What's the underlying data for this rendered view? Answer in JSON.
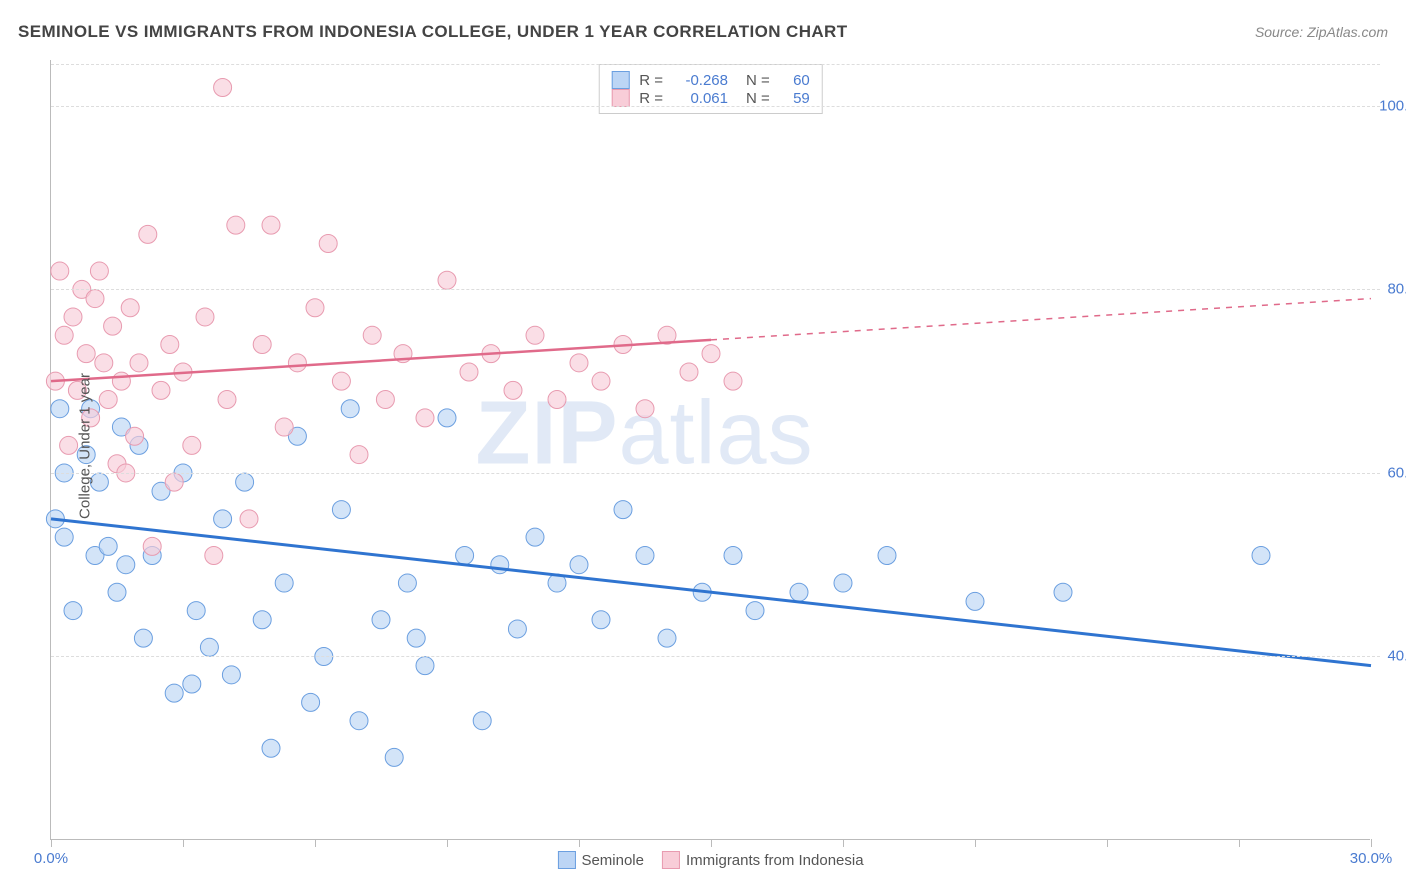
{
  "title": "SEMINOLE VS IMMIGRANTS FROM INDONESIA COLLEGE, UNDER 1 YEAR CORRELATION CHART",
  "source": "Source: ZipAtlas.com",
  "watermark1": "ZIP",
  "watermark2": "atlas",
  "ylabel": "College, Under 1 year",
  "chart": {
    "type": "scatter-correlation",
    "xlim": [
      0,
      30
    ],
    "ylim": [
      20,
      105
    ],
    "y_ticks": [
      40,
      60,
      80,
      100
    ],
    "y_tick_labels": [
      "40.0%",
      "60.0%",
      "80.0%",
      "100.0%"
    ],
    "x_tick_positions": [
      0,
      3,
      6,
      9,
      12,
      15,
      18,
      21,
      24,
      27,
      30
    ],
    "x_tick_labels_visible": {
      "0": "0.0%",
      "30": "30.0%"
    },
    "grid_color": "#dddddd",
    "axis_color": "#bbbbbb",
    "background": "#ffffff",
    "tick_label_color": "#4a7bd0",
    "series": [
      {
        "name": "Seminole",
        "fill": "#bcd5f5",
        "stroke": "#6b9fe0",
        "trend_color": "#2f74d0",
        "trend_width": 3,
        "R": "-0.268",
        "N": "60",
        "trend": {
          "x1": 0,
          "y1": 55,
          "x2": 30,
          "y2": 39
        },
        "points": [
          [
            0.1,
            55
          ],
          [
            0.2,
            67
          ],
          [
            0.3,
            53
          ],
          [
            0.3,
            60
          ],
          [
            0.5,
            45
          ],
          [
            0.8,
            62
          ],
          [
            0.9,
            67
          ],
          [
            1.0,
            51
          ],
          [
            1.1,
            59
          ],
          [
            1.3,
            52
          ],
          [
            1.5,
            47
          ],
          [
            1.6,
            65
          ],
          [
            1.7,
            50
          ],
          [
            2.0,
            63
          ],
          [
            2.1,
            42
          ],
          [
            2.3,
            51
          ],
          [
            2.5,
            58
          ],
          [
            2.8,
            36
          ],
          [
            3.0,
            60
          ],
          [
            3.2,
            37
          ],
          [
            3.3,
            45
          ],
          [
            3.6,
            41
          ],
          [
            3.9,
            55
          ],
          [
            4.1,
            38
          ],
          [
            4.4,
            59
          ],
          [
            4.8,
            44
          ],
          [
            5.0,
            30
          ],
          [
            5.3,
            48
          ],
          [
            5.6,
            64
          ],
          [
            5.9,
            35
          ],
          [
            6.2,
            40
          ],
          [
            6.6,
            56
          ],
          [
            6.8,
            67
          ],
          [
            7.0,
            33
          ],
          [
            7.5,
            44
          ],
          [
            7.8,
            29
          ],
          [
            8.1,
            48
          ],
          [
            8.3,
            42
          ],
          [
            8.5,
            39
          ],
          [
            9.0,
            66
          ],
          [
            9.4,
            51
          ],
          [
            9.8,
            33
          ],
          [
            10.2,
            50
          ],
          [
            10.6,
            43
          ],
          [
            11.0,
            53
          ],
          [
            11.5,
            48
          ],
          [
            12.0,
            50
          ],
          [
            12.5,
            44
          ],
          [
            13.0,
            56
          ],
          [
            13.5,
            51
          ],
          [
            14.0,
            42
          ],
          [
            14.8,
            47
          ],
          [
            15.5,
            51
          ],
          [
            16.0,
            45
          ],
          [
            17.0,
            47
          ],
          [
            18.0,
            48
          ],
          [
            19.0,
            51
          ],
          [
            21.0,
            46
          ],
          [
            23.0,
            47
          ],
          [
            27.5,
            51
          ]
        ]
      },
      {
        "name": "Immigrants from Indonesia",
        "fill": "#f8cdd8",
        "stroke": "#e89bb0",
        "trend_color": "#e06a8a",
        "trend_width": 2.5,
        "R": "0.061",
        "N": "59",
        "trend": {
          "x1": 0,
          "y1": 70,
          "x2": 30,
          "y2": 79
        },
        "trend_dash_after_x": 15,
        "points": [
          [
            0.1,
            70
          ],
          [
            0.2,
            82
          ],
          [
            0.3,
            75
          ],
          [
            0.4,
            63
          ],
          [
            0.5,
            77
          ],
          [
            0.6,
            69
          ],
          [
            0.7,
            80
          ],
          [
            0.8,
            73
          ],
          [
            0.9,
            66
          ],
          [
            1.0,
            79
          ],
          [
            1.1,
            82
          ],
          [
            1.2,
            72
          ],
          [
            1.3,
            68
          ],
          [
            1.4,
            76
          ],
          [
            1.5,
            61
          ],
          [
            1.6,
            70
          ],
          [
            1.7,
            60
          ],
          [
            1.8,
            78
          ],
          [
            1.9,
            64
          ],
          [
            2.0,
            72
          ],
          [
            2.2,
            86
          ],
          [
            2.3,
            52
          ],
          [
            2.5,
            69
          ],
          [
            2.7,
            74
          ],
          [
            2.8,
            59
          ],
          [
            3.0,
            71
          ],
          [
            3.2,
            63
          ],
          [
            3.5,
            77
          ],
          [
            3.7,
            51
          ],
          [
            3.9,
            102
          ],
          [
            4.0,
            68
          ],
          [
            4.2,
            87
          ],
          [
            4.5,
            55
          ],
          [
            4.8,
            74
          ],
          [
            5.0,
            87
          ],
          [
            5.3,
            65
          ],
          [
            5.6,
            72
          ],
          [
            6.0,
            78
          ],
          [
            6.3,
            85
          ],
          [
            6.6,
            70
          ],
          [
            7.0,
            62
          ],
          [
            7.3,
            75
          ],
          [
            7.6,
            68
          ],
          [
            8.0,
            73
          ],
          [
            8.5,
            66
          ],
          [
            9.0,
            81
          ],
          [
            9.5,
            71
          ],
          [
            10.0,
            73
          ],
          [
            10.5,
            69
          ],
          [
            11.0,
            75
          ],
          [
            11.5,
            68
          ],
          [
            12.0,
            72
          ],
          [
            12.5,
            70
          ],
          [
            13.0,
            74
          ],
          [
            13.5,
            67
          ],
          [
            14.0,
            75
          ],
          [
            14.5,
            71
          ],
          [
            15.0,
            73
          ],
          [
            15.5,
            70
          ]
        ]
      }
    ],
    "marker_radius": 9,
    "marker_opacity": 0.65,
    "title_fontsize": 17,
    "label_fontsize": 15
  },
  "legend_rn_labels": {
    "R": "R =",
    "N": "N ="
  },
  "legend_bottom": [
    "Seminole",
    "Immigrants from Indonesia"
  ]
}
